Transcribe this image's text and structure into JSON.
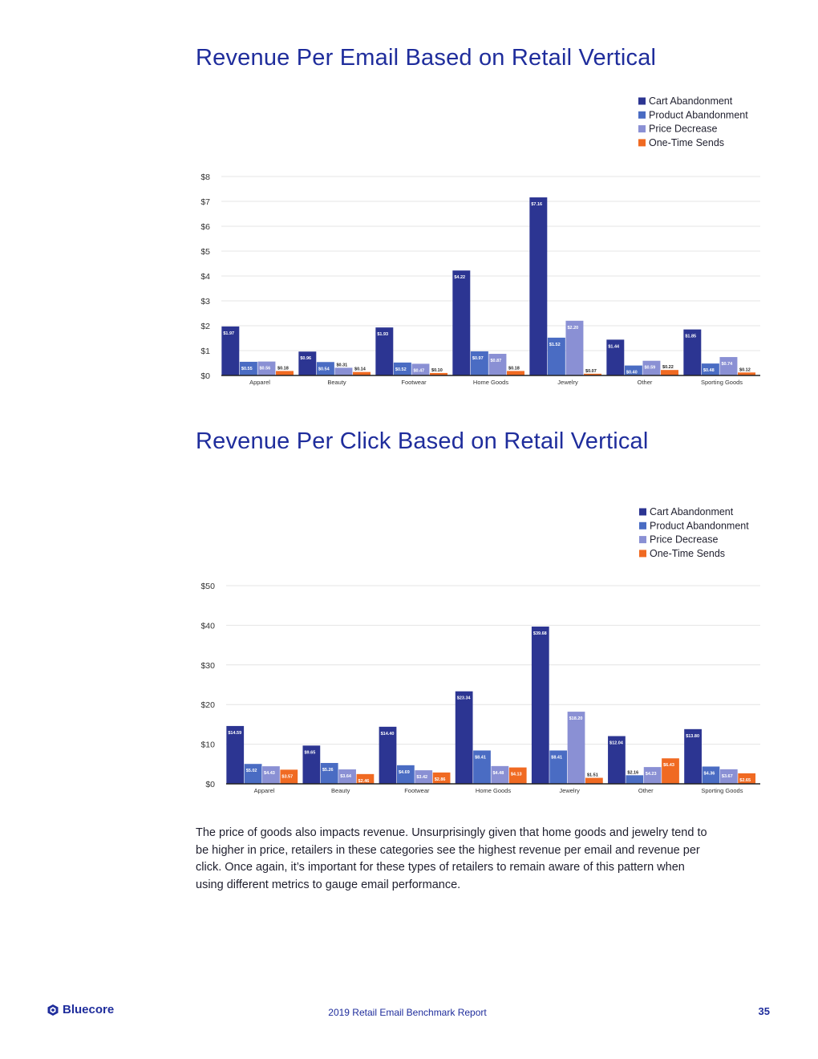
{
  "colors": {
    "Cart Abandonment": "#2c3592",
    "Product Abandonment": "#4a6cc3",
    "Price Decrease": "#8a90d4",
    "One-Time Sends": "#f06a22"
  },
  "chart_data": [
    {
      "type": "bar",
      "title": "Revenue Per Email Based on Retail Vertical",
      "categories": [
        "Apparel",
        "Beauty",
        "Footwear",
        "Home Goods",
        "Jewelry",
        "Other",
        "Sporting Goods"
      ],
      "series": [
        {
          "name": "Cart Abandonment",
          "values": [
            1.97,
            0.96,
            1.93,
            4.22,
            7.16,
            1.44,
            1.85
          ],
          "labels": [
            "$1.97",
            "$0.96",
            "$1.93",
            "$4.22",
            "$7.16",
            "$1.44",
            "$1.85"
          ]
        },
        {
          "name": "Product Abandonment",
          "values": [
            0.55,
            0.54,
            0.52,
            0.97,
            1.52,
            0.4,
            0.48
          ],
          "labels": [
            "$0.55",
            "$0.54",
            "$0.52",
            "$0.97",
            "$1.52",
            "$0.40",
            "$0.48"
          ]
        },
        {
          "name": "Price Decrease",
          "values": [
            0.56,
            0.31,
            0.47,
            0.87,
            2.2,
            0.59,
            0.74
          ],
          "labels": [
            "$0.56",
            "$0.31",
            "$0.47",
            "$0.87",
            "$2.20",
            "$0.59",
            "$0.74"
          ]
        },
        {
          "name": "One-Time Sends",
          "values": [
            0.18,
            0.14,
            0.1,
            0.18,
            0.07,
            0.22,
            0.12
          ],
          "labels": [
            "$0.18",
            "$0.14",
            "$0.10",
            "$0.18",
            "$0.07",
            "$0.22",
            "$0.12"
          ]
        }
      ],
      "yticks": [
        "$0",
        "$1",
        "$2",
        "$3",
        "$4",
        "$5",
        "$6",
        "$7",
        "$8"
      ],
      "ylim": [
        0,
        8
      ],
      "grid": true,
      "legend": "top-right"
    },
    {
      "type": "bar",
      "title": "Revenue Per Click Based on Retail Vertical",
      "categories": [
        "Apparel",
        "Beauty",
        "Footwear",
        "Home Goods",
        "Jewelry",
        "Other",
        "Sporting Goods"
      ],
      "series": [
        {
          "name": "Cart Abandonment",
          "values": [
            14.59,
            9.65,
            14.4,
            23.34,
            39.68,
            12.04,
            13.8
          ],
          "labels": [
            "$14.59",
            "$9.65",
            "$14.40",
            "$23.34",
            "$39.68",
            "$12.04",
            "$13.80"
          ]
        },
        {
          "name": "Product Abandonment",
          "values": [
            5.02,
            5.26,
            4.69,
            8.41,
            8.41,
            2.16,
            4.36
          ],
          "labels": [
            "$5.02",
            "$5.26",
            "$4.69",
            "$8.41",
            "$8.41",
            "$2.16",
            "$4.36"
          ]
        },
        {
          "name": "Price Decrease",
          "values": [
            4.43,
            3.64,
            3.42,
            4.48,
            18.2,
            4.23,
            3.67
          ],
          "labels": [
            "$4.43",
            "$3.64",
            "$3.42",
            "$4.48",
            "$18.20",
            "$4.23",
            "$3.67"
          ]
        },
        {
          "name": "One-Time Sends",
          "values": [
            3.57,
            2.46,
            2.86,
            4.13,
            1.51,
            6.43,
            2.65
          ],
          "labels": [
            "$3.57",
            "$2.46",
            "$2.86",
            "$4.13",
            "$1.51",
            "$6.43",
            "$2.65"
          ]
        }
      ],
      "yticks": [
        "$0",
        "$10",
        "$20",
        "$30",
        "$40",
        "$50"
      ],
      "ylim": [
        0,
        50
      ],
      "grid": true,
      "legend": "top-right"
    }
  ],
  "body_text": "The price of goods also impacts revenue. Unsurprisingly given that home goods and jewelry tend to be higher in price, retailers in these categories see the highest revenue per email and revenue per click. Once again, it’s important for these types of retailers to remain aware of this pattern when using different metrics to gauge email performance.",
  "footer": {
    "logo": "Bluecore",
    "report_title": "2019 Retail Email Benchmark Report",
    "page_number": "35"
  }
}
